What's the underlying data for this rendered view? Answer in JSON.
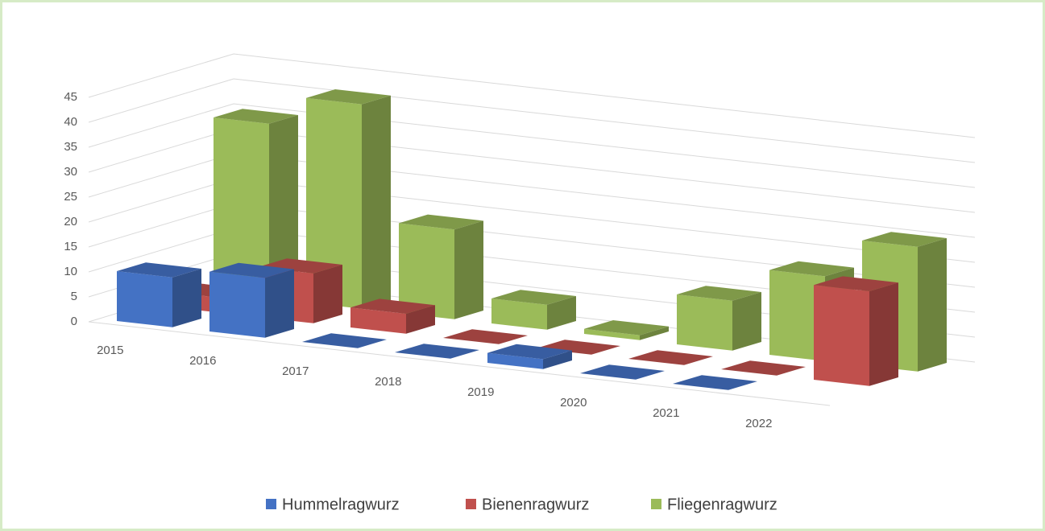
{
  "chart_data": {
    "type": "bar3d",
    "categories": [
      "2015",
      "2016",
      "2017",
      "2018",
      "2019",
      "2020",
      "2021",
      "2022"
    ],
    "series": [
      {
        "name": "Hummelragwurz",
        "color": "#4472c4",
        "values": [
          10,
          12,
          0,
          0,
          2,
          0,
          0,
          null
        ]
      },
      {
        "name": "Bienenragwurz",
        "color": "#c0504d",
        "values": [
          3,
          10,
          4,
          0,
          0,
          0,
          0,
          19
        ]
      },
      {
        "name": "Fliegenragwurz",
        "color": "#9bbb59",
        "values": [
          35,
          41,
          18,
          5,
          1,
          10,
          17,
          25
        ]
      }
    ],
    "ylim": [
      0,
      45
    ],
    "yticks": [
      0,
      5,
      10,
      15,
      20,
      25,
      30,
      35,
      40,
      45
    ],
    "grid": true
  }
}
